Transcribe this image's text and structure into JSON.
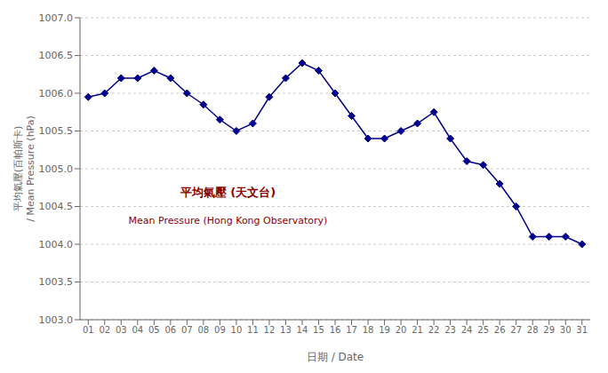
{
  "chart_data": {
    "type": "line",
    "x": [
      1,
      2,
      3,
      4,
      5,
      6,
      7,
      8,
      9,
      10,
      11,
      12,
      13,
      14,
      15,
      16,
      17,
      18,
      19,
      20,
      21,
      22,
      23,
      24,
      25,
      26,
      27,
      28,
      29,
      30,
      31
    ],
    "values": [
      1005.95,
      1006.0,
      1006.2,
      1006.2,
      1006.3,
      1006.2,
      1006.0,
      1005.85,
      1005.65,
      1005.5,
      1005.6,
      1005.95,
      1006.2,
      1006.4,
      1006.3,
      1006.0,
      1005.7,
      1005.4,
      1005.4,
      1005.5,
      1005.6,
      1005.75,
      1005.4,
      1005.1,
      1005.05,
      1004.8,
      1004.5,
      1004.1,
      1004.1,
      1004.1,
      1004.0
    ],
    "color": "#00008B",
    "marker": "diamond",
    "xlabel": "日期 / Date",
    "ylabel": "平均氣壓(百帕斯卡)\n/ Mean Pressure (hPa)",
    "xlim": [
      0.5,
      31.5
    ],
    "xticks": [
      {
        "value": 1,
        "label": "01"
      },
      {
        "value": 2,
        "label": "02"
      },
      {
        "value": 3,
        "label": "03"
      },
      {
        "value": 4,
        "label": "04"
      },
      {
        "value": 5,
        "label": "05"
      },
      {
        "value": 6,
        "label": "06"
      },
      {
        "value": 7,
        "label": "07"
      },
      {
        "value": 8,
        "label": "08"
      },
      {
        "value": 9,
        "label": "09"
      },
      10,
      11,
      12,
      13,
      14,
      15,
      16,
      17,
      18,
      19,
      20,
      21,
      22,
      23,
      24,
      25,
      26,
      27,
      28,
      29,
      30,
      31
    ],
    "ylim": [
      1003.0,
      1007.0
    ],
    "yticks": [
      {
        "value": 1003.0,
        "label": "1003.0"
      },
      1003.5,
      {
        "value": 1004.0,
        "label": "1004.0"
      },
      1004.5,
      {
        "value": 1005.0,
        "label": "1005.0"
      },
      1005.5,
      {
        "value": 1006.0,
        "label": "1006.0"
      },
      1006.5,
      {
        "value": 1007.0,
        "label": "1007.0"
      }
    ],
    "grid": true,
    "annotations": [
      {
        "text": "平均氣壓 (天文台)",
        "color": "#8B0000"
      },
      {
        "text": "Mean Pressure (Hong Kong Observatory)",
        "color": "#8B0000"
      }
    ]
  }
}
